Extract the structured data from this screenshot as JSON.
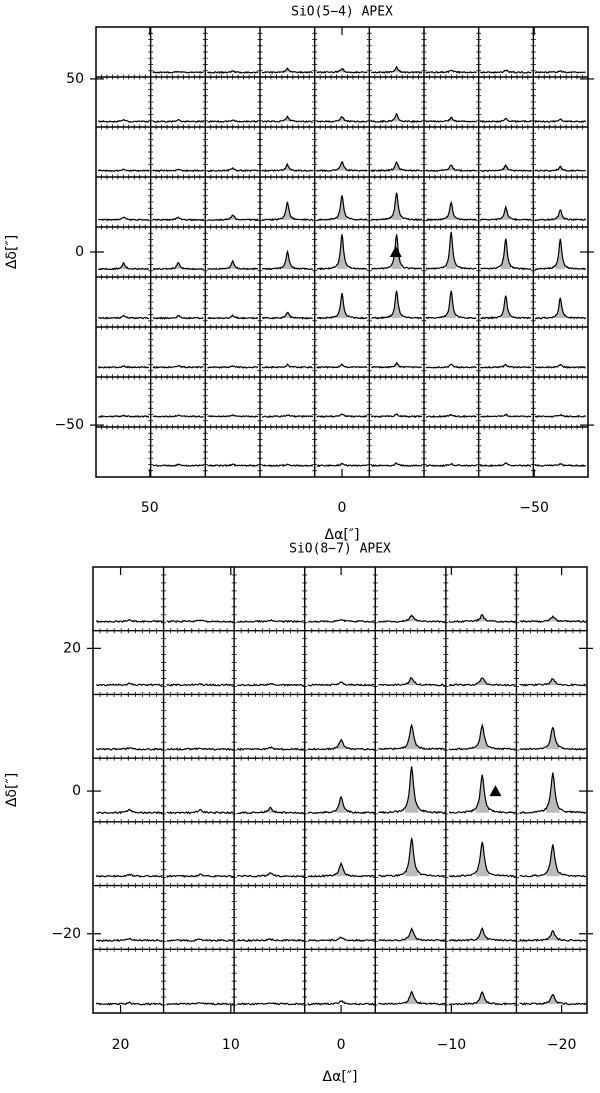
{
  "chart_data": [
    {
      "type": "spectral-map",
      "title": "SiO(5−4) APEX",
      "xlabel": "Δα[″]",
      "ylabel": "Δδ[″]",
      "xlim": [
        64,
        -64
      ],
      "ylim": [
        -65,
        65
      ],
      "xticks": [
        50,
        0,
        {
          "value": -50,
          "label": "−50"
        }
      ],
      "yticks": [
        50,
        0,
        {
          "value": -50,
          "label": "−50"
        }
      ],
      "ra_offsets": [
        56.8,
        42.6,
        28.4,
        14.2,
        0,
        -14.2,
        -28.4,
        -42.6,
        -56.8
      ],
      "dec_offsets": [
        56.8,
        42.6,
        28.4,
        14.2,
        0,
        -14.2,
        -28.4,
        -42.6,
        -56.8
      ],
      "peaks": [
        [
          null,
          0.02,
          0.02,
          0.08,
          0.08,
          0.1,
          0.05,
          0.05,
          0.03
        ],
        [
          0.03,
          0.03,
          0.03,
          0.1,
          0.1,
          0.15,
          0.08,
          0.06,
          0.05
        ],
        [
          0.03,
          0.03,
          0.05,
          0.12,
          0.18,
          0.18,
          0.12,
          0.1,
          0.08
        ],
        [
          0.05,
          0.05,
          0.1,
          0.35,
          0.5,
          0.55,
          0.35,
          0.25,
          0.2
        ],
        [
          0.12,
          0.12,
          0.15,
          0.35,
          0.7,
          0.7,
          0.75,
          0.6,
          0.6
        ],
        [
          0.05,
          0.05,
          0.05,
          0.12,
          0.5,
          0.55,
          0.55,
          0.45,
          0.4
        ],
        [
          0.03,
          0.03,
          0.03,
          0.05,
          0.06,
          0.08,
          0.05,
          0.05,
          0.05
        ],
        [
          0.02,
          0.02,
          0.03,
          0.03,
          0.05,
          0.05,
          0.04,
          0.04,
          0.03
        ],
        [
          null,
          0.02,
          0.02,
          0.02,
          0.04,
          0.05,
          0.04,
          0.05,
          0.04
        ]
      ],
      "marker": [
        -14,
        0
      ],
      "fill_color": "#bbbbbb"
    },
    {
      "type": "spectral-map",
      "title": "SiO(8−7) APEX",
      "xlabel": "Δα[″]",
      "ylabel": "Δδ[″]",
      "xlim": [
        22.5,
        -22.3
      ],
      "ylim": [
        -31.1,
        31.4
      ],
      "xticks": [
        20,
        10,
        0,
        {
          "value": -10,
          "label": "−10"
        },
        {
          "value": -20,
          "label": "−20"
        }
      ],
      "yticks": [
        20,
        0,
        {
          "value": -20,
          "label": "−20"
        }
      ],
      "ra_offsets": [
        19.2,
        12.8,
        6.4,
        0,
        -6.4,
        -12.8,
        -19.2
      ],
      "dec_offsets": [
        26.8,
        17.9,
        8.9,
        0,
        -8.9,
        -17.9,
        -26.8
      ],
      "peaks": [
        [
          0.02,
          0.02,
          0.02,
          0.03,
          0.1,
          0.1,
          0.08
        ],
        [
          0.02,
          0.02,
          0.02,
          0.05,
          0.12,
          0.12,
          0.1
        ],
        [
          0.02,
          0.02,
          0.03,
          0.15,
          0.38,
          0.38,
          0.35
        ],
        [
          0.05,
          0.05,
          0.08,
          0.25,
          0.72,
          0.6,
          0.62
        ],
        [
          0.03,
          0.03,
          0.05,
          0.2,
          0.6,
          0.55,
          0.5
        ],
        [
          0.02,
          0.02,
          0.02,
          0.05,
          0.18,
          0.18,
          0.15
        ],
        [
          0.02,
          0.02,
          0.02,
          0.05,
          0.2,
          0.18,
          0.15
        ]
      ],
      "marker": [
        -14,
        0
      ],
      "fill_color": "#bbbbbb"
    }
  ]
}
